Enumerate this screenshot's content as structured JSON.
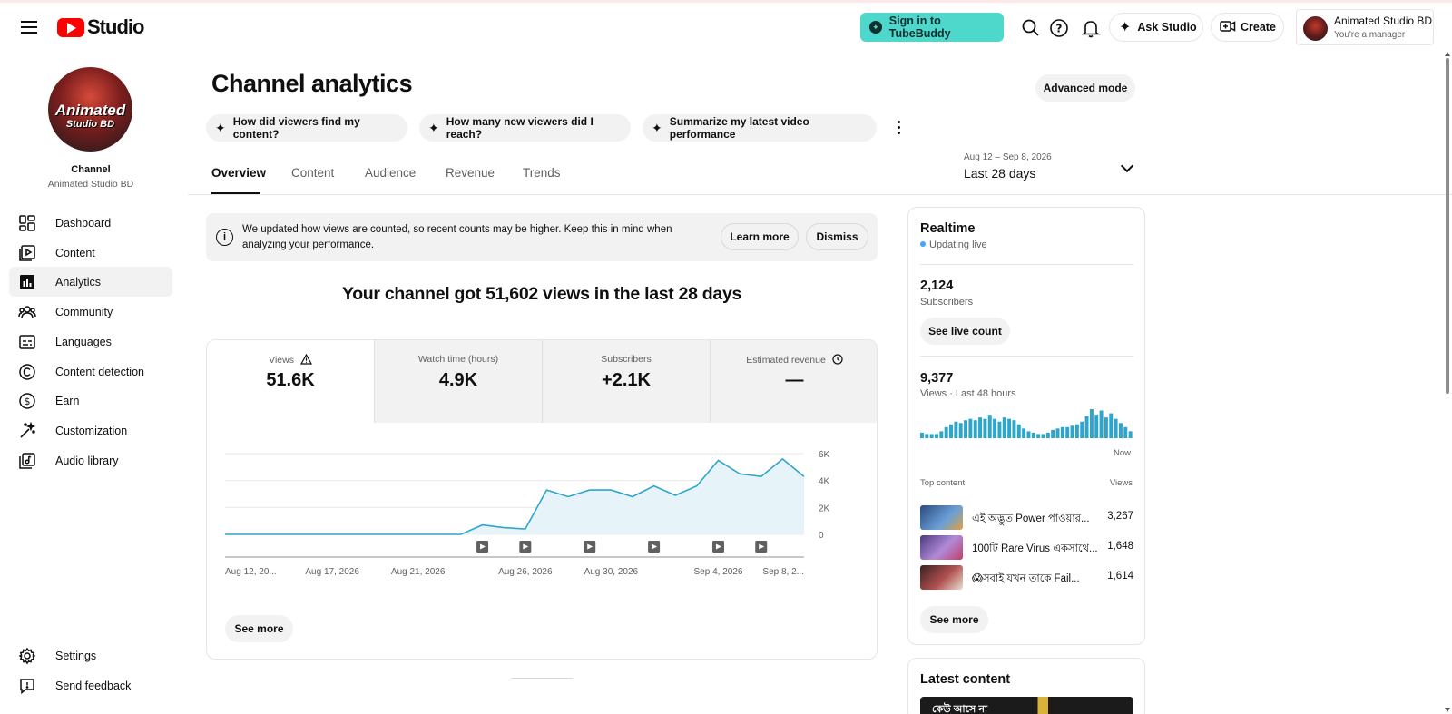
{
  "app": {
    "name": "Studio"
  },
  "topbar": {
    "tubebuddy_label": "Sign in to TubeBuddy",
    "ask_label": "Ask Studio",
    "create_label": "Create",
    "account_name": "Animated Studio BD",
    "account_role": "You're a manager"
  },
  "sidebar": {
    "avatar_line1": "Animated",
    "avatar_line2": "Studio BD",
    "channel_label": "Channel",
    "channel_name": "Animated Studio BD",
    "items": [
      {
        "label": "Dashboard",
        "icon": "dashboard-icon"
      },
      {
        "label": "Content",
        "icon": "content-icon"
      },
      {
        "label": "Analytics",
        "icon": "analytics-icon",
        "active": true
      },
      {
        "label": "Community",
        "icon": "community-icon"
      },
      {
        "label": "Languages",
        "icon": "languages-icon"
      },
      {
        "label": "Content detection",
        "icon": "copyright-icon"
      },
      {
        "label": "Earn",
        "icon": "dollar-icon"
      },
      {
        "label": "Customization",
        "icon": "magic-wand-icon"
      },
      {
        "label": "Audio library",
        "icon": "audio-library-icon"
      }
    ],
    "bottom": [
      {
        "label": "Settings",
        "icon": "gear-icon"
      },
      {
        "label": "Send feedback",
        "icon": "feedback-icon"
      }
    ]
  },
  "main": {
    "title": "Channel analytics",
    "advanced_mode": "Advanced mode",
    "chips": [
      "How did viewers find my content?",
      "How many new viewers did I reach?",
      "Summarize my latest video performance"
    ],
    "tabs": [
      "Overview",
      "Content",
      "Audience",
      "Revenue",
      "Trends"
    ],
    "active_tab": "Overview",
    "date_range": {
      "dates": "Aug 12 – Sep 8, 2026",
      "label": "Last 28 days"
    },
    "notice": {
      "text": "We updated how views are counted, so recent counts may be higher. Keep this in mind when analyzing your performance.",
      "learn_more": "Learn more",
      "dismiss": "Dismiss"
    },
    "headline": "Your channel got 51,602 views in the last 28 days",
    "metrics": [
      {
        "label": "Views",
        "value": "51.6K",
        "icon": "warning-icon",
        "active": true
      },
      {
        "label": "Watch time (hours)",
        "value": "4.9K"
      },
      {
        "label": "Subscribers",
        "value": "+2.1K"
      },
      {
        "label": "Estimated revenue",
        "value": "—",
        "icon": "clock-icon"
      }
    ],
    "see_more": "See more"
  },
  "chart_data": {
    "type": "area",
    "x": [
      "Aug 12",
      "Aug 13",
      "Aug 14",
      "Aug 15",
      "Aug 16",
      "Aug 17",
      "Aug 18",
      "Aug 19",
      "Aug 20",
      "Aug 21",
      "Aug 22",
      "Aug 23",
      "Aug 24",
      "Aug 25",
      "Aug 26",
      "Aug 27",
      "Aug 28",
      "Aug 29",
      "Aug 30",
      "Aug 31",
      "Sep 1",
      "Sep 2",
      "Sep 3",
      "Sep 4",
      "Sep 5",
      "Sep 6",
      "Sep 7",
      "Sep 8"
    ],
    "series": [
      {
        "values": [
          0,
          0,
          0,
          0,
          0,
          0,
          0,
          0,
          0,
          0,
          0,
          0,
          700,
          500,
          400,
          3300,
          2800,
          3300,
          3300,
          2800,
          3600,
          2900,
          3600,
          5500,
          4500,
          4300,
          5600,
          4300
        ]
      }
    ],
    "x_tick_labels": [
      "Aug 12, 20...",
      "Aug 17, 2026",
      "Aug 21, 2026",
      "Aug 26, 2026",
      "Aug 30, 2026",
      "Sep 4, 2026",
      "Sep 8, 2..."
    ],
    "y_ticks": [
      "0",
      "2K",
      "4K",
      "6K"
    ],
    "ylim": [
      0,
      6000
    ],
    "video_markers": [
      "Aug 24",
      "Aug 26",
      "Aug 29",
      "Sep 1",
      "Sep 4",
      "Sep 6"
    ],
    "color": "#2ea5cc",
    "fill": "#e6f3f8",
    "grid": true
  },
  "realtime": {
    "title": "Realtime",
    "status": "Updating live",
    "subscribers": "2,124",
    "subscribers_label": "Subscribers",
    "see_live": "See live count",
    "views": "9,377",
    "views_label": "Views · Last 48 hours",
    "now_label": "Now",
    "bars": [
      4,
      3,
      3,
      3,
      5,
      8,
      10,
      12,
      11,
      13,
      14,
      13,
      15,
      14,
      17,
      14,
      12,
      15,
      14,
      13,
      10,
      7,
      5,
      4,
      3,
      3,
      4,
      6,
      7,
      8,
      8,
      9,
      10,
      12,
      16,
      21,
      17,
      20,
      15,
      18,
      14,
      11,
      8,
      5
    ],
    "top_content_label": "Top content",
    "views_col": "Views",
    "top": [
      {
        "title": "এই অদ্ভুত Power পাওয়ার...",
        "views": "3,267",
        "thumb": "#4a6fa8"
      },
      {
        "title": "100টি Rare Virus একসাথে...",
        "views": "1,648",
        "thumb": "#7a5ca8"
      },
      {
        "title": "😱সবাই যখন তাকে Fail...",
        "views": "1,614",
        "thumb": "#8a3b3b"
      }
    ],
    "see_more": "See more"
  },
  "latest": {
    "title": "Latest content",
    "thumb_text": "কেউ আসে না"
  }
}
